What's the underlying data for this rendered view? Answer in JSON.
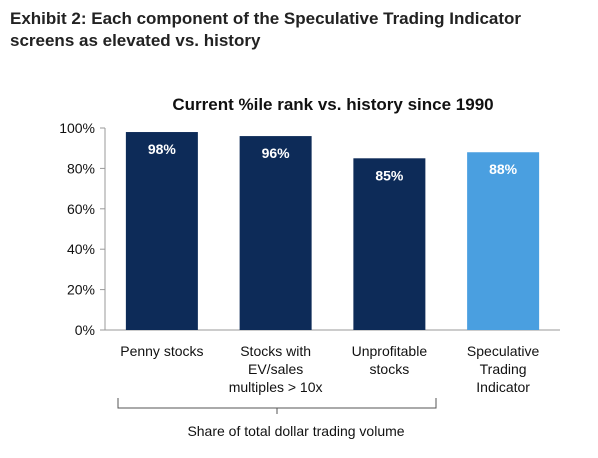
{
  "exhibit": {
    "title_line1": "Exhibit 2: Each component of the Speculative Trading Indicator",
    "title_line2": "screens as elevated vs. history"
  },
  "chart_data": {
    "type": "bar",
    "title": "Current %ile rank vs. history since 1990",
    "categories": [
      [
        "Penny stocks"
      ],
      [
        "Stocks with",
        "EV/sales",
        "multiples > 10x"
      ],
      [
        "Unprofitable",
        "stocks"
      ],
      [
        "Speculative",
        "Trading",
        "Indicator"
      ]
    ],
    "values": [
      98,
      96,
      85,
      88
    ],
    "data_labels": [
      "98%",
      "96%",
      "85%",
      "88%"
    ],
    "colors": [
      "#0d2b58",
      "#0d2b58",
      "#0d2b58",
      "#4a9fe0"
    ],
    "ylim": [
      0,
      100
    ],
    "yticks": [
      0,
      20,
      40,
      60,
      80,
      100
    ],
    "ytick_labels": [
      "0%",
      "20%",
      "40%",
      "60%",
      "80%",
      "100%"
    ],
    "bracket_label": "Share of total dollar trading volume",
    "xlabel": "",
    "ylabel": ""
  }
}
